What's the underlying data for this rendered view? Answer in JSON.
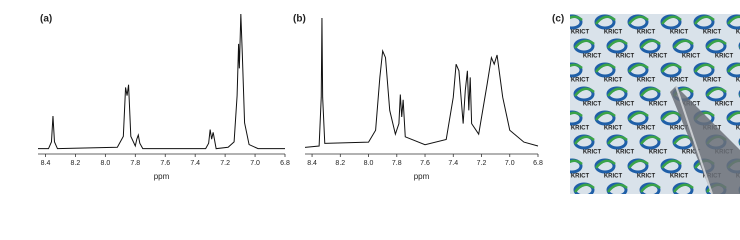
{
  "chart_data": [
    {
      "type": "line",
      "label": "(a)",
      "x_label": "ppm",
      "x": [
        8.45,
        8.38,
        8.36,
        8.35,
        8.34,
        8.32,
        7.92,
        7.88,
        7.865,
        7.855,
        7.845,
        7.83,
        7.8,
        7.79,
        7.78,
        7.77,
        7.75,
        7.33,
        7.31,
        7.3,
        7.29,
        7.28,
        7.26,
        7.18,
        7.14,
        7.12,
        7.11,
        7.105,
        7.095,
        7.085,
        7.07,
        7.04,
        6.98,
        6.8
      ],
      "values": [
        1,
        1,
        6,
        25,
        6,
        1,
        2,
        10,
        46,
        40,
        48,
        10,
        3,
        8,
        11,
        5,
        1,
        1,
        5,
        15,
        8,
        13,
        1,
        2,
        6,
        40,
        78,
        60,
        100,
        70,
        20,
        4,
        1,
        1
      ],
      "color": "#111111",
      "xlim": [
        8.45,
        6.8
      ],
      "ylim": [
        0,
        100
      ],
      "xticks": [
        8.4,
        8.2,
        {
          "value": 8,
          "label": "8.0"
        },
        7.8,
        7.6,
        7.4,
        7.2,
        {
          "value": 7,
          "label": "7.0"
        },
        6.8
      ]
    },
    {
      "type": "line",
      "label": "(b)",
      "x_label": "ppm",
      "x": [
        8.45,
        8.35,
        8.335,
        8.33,
        8.325,
        8.31,
        8.0,
        7.95,
        7.92,
        7.9,
        7.88,
        7.85,
        7.81,
        7.785,
        7.775,
        7.765,
        7.755,
        7.74,
        7.6,
        7.45,
        7.4,
        7.38,
        7.36,
        7.33,
        7.315,
        7.3,
        7.29,
        7.28,
        7.27,
        7.22,
        7.16,
        7.13,
        7.11,
        7.09,
        7.05,
        7.0,
        6.9,
        6.8
      ],
      "values": [
        2,
        3,
        40,
        100,
        40,
        5,
        6,
        15,
        55,
        75,
        70,
        30,
        12,
        20,
        42,
        25,
        38,
        10,
        4,
        8,
        40,
        65,
        60,
        20,
        45,
        60,
        30,
        55,
        20,
        12,
        50,
        70,
        65,
        72,
        40,
        15,
        6,
        3
      ],
      "color": "#111111",
      "xlim": [
        8.45,
        6.8
      ],
      "ylim": [
        0,
        100
      ],
      "xticks": [
        8.4,
        8.2,
        {
          "value": 8,
          "label": "8.0"
        },
        7.8,
        7.6,
        7.4,
        7.2,
        {
          "value": 7,
          "label": "7.0"
        },
        6.8
      ]
    }
  ],
  "panel_c": {
    "label": "(c)",
    "logo_text": "KRICT"
  }
}
